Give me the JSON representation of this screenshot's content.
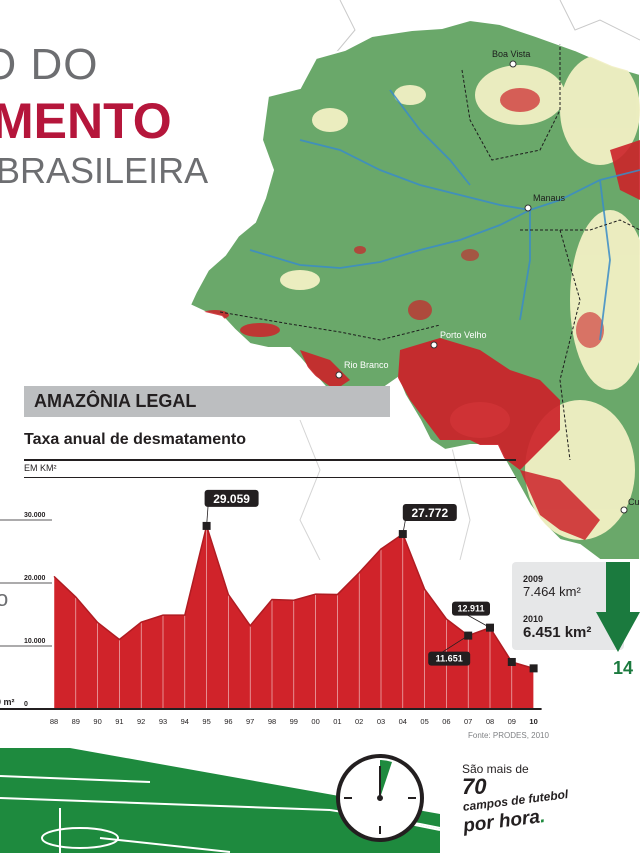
{
  "title": {
    "line1": "O DO",
    "line2": "MENTO",
    "line3": "BRASILEIRA"
  },
  "map": {
    "cities": [
      "Boa Vista",
      "Manaus",
      "Porto Velho",
      "Rio Branco",
      "Cu"
    ]
  },
  "section_label": "AMAZÔNIA LEGAL",
  "colors": {
    "title_red": "#b5163b",
    "forest": "#6aa86a",
    "deforested": "#cc2229",
    "savanna": "#f2f0c4",
    "chart_fill": "#d0232a",
    "arrow_green": "#1b7a3e"
  },
  "chart_data": {
    "type": "area",
    "title": "Taxa anual de desmatamento",
    "ylabel": "EM KM²",
    "x": [
      "88",
      "89",
      "90",
      "91",
      "92",
      "93",
      "94",
      "95",
      "96",
      "97",
      "98",
      "99",
      "00",
      "01",
      "02",
      "03",
      "04",
      "05",
      "06",
      "07",
      "08",
      "09",
      "10"
    ],
    "values": [
      21050,
      17770,
      13730,
      11030,
      13786,
      14896,
      14896,
      29059,
      18161,
      13227,
      17383,
      17259,
      18226,
      18165,
      21651,
      25396,
      27772,
      19014,
      14286,
      11651,
      12911,
      7464,
      6451
    ],
    "yticks": [
      "0",
      "10.000",
      "20.000",
      "30.000"
    ],
    "ylim": [
      0,
      35000
    ],
    "annotations": [
      {
        "year": "95",
        "label": "29.059"
      },
      {
        "year": "04",
        "label": "27.772"
      },
      {
        "year": "07",
        "label": "11.651"
      },
      {
        "year": "08",
        "label": "12.911"
      }
    ],
    "source": "Fonte: PRODES, 2010"
  },
  "stats": {
    "y1": "2009",
    "v1": "7.464 km²",
    "y2": "2010",
    "v2": "6.451 km²",
    "pct_partial": "14"
  },
  "edge_text": {
    "left_o": "o",
    "left_m2": "0 m²"
  },
  "football": {
    "line1": "São mais de",
    "line2": "70",
    "line3": "campos de futebol",
    "line4": "por hora",
    "dot": "."
  }
}
